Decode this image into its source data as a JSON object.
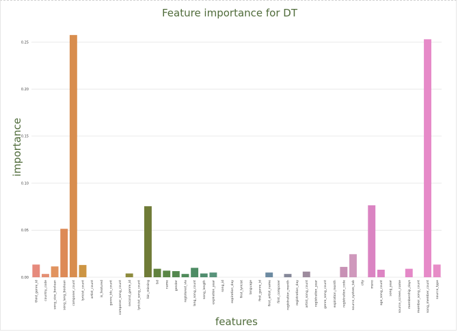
{
  "chart_data": {
    "type": "bar",
    "title": "Feature importance for DT",
    "xlabel": "features",
    "ylabel": "importance",
    "ylim": [
      0,
      0.27
    ],
    "yticks": [
      "0.00",
      "0.05",
      "0.10",
      "0.15",
      "0.20",
      "0.25"
    ],
    "grid": true,
    "categories": [
      "third_genre_id",
      "country_code",
      "song_size_boolean",
      "song_lang_boolean",
      "composer_count",
      "lyricist_count",
      "artist_count",
      "is_featured",
      "genre_ids_count",
      "composer_song_count",
      "second_genre_id",
      "lyricist_song_count",
      "bin_missing",
      "bd",
      "name",
      "gender",
      "registered_via",
      "lang_song_count",
      "song_length",
      "expiration_year",
      "song_id",
      "expiration_day",
      "first_lyricist",
      "language",
      "first_genre_id",
      "first_artist_name",
      "first_composer",
      "registration_month",
      "registration_day",
      "artist_song_count",
      "registration_year",
      "genre_song_count",
      "expiration_month",
      "registration_code",
      "source_system_tab",
      "city",
      "msno",
      "age_song_count",
      "song_year",
      "source_screen_name",
      "membership_days",
      "member_song_count",
      "song_member_count",
      "source_type"
    ],
    "values": [
      0.0135,
      0.0035,
      0.0115,
      0.0515,
      0.2575,
      0.013,
      0.0,
      0.0,
      0.0,
      0.0,
      0.004,
      0.0,
      0.0755,
      0.009,
      0.007,
      0.0065,
      0.0035,
      0.01,
      0.004,
      0.005,
      0.0,
      0.0,
      0.0,
      0.0,
      0.0,
      0.005,
      0.0,
      0.0035,
      0.0,
      0.006,
      0.0,
      0.0,
      0.0,
      0.011,
      0.0245,
      0.0,
      0.0765,
      0.008,
      0.0,
      0.0,
      0.009,
      0.0,
      0.253,
      0.0135
    ],
    "colors": [
      "#e68a7c",
      "#e48f73",
      "#e1935f",
      "#dd8a56",
      "#d88d4e",
      "#cd9543",
      "#c39b3d",
      "#b7a03a",
      "#a9a43a",
      "#9ca63d",
      "#8d8b3d",
      "#7d7a39",
      "#6f7b37",
      "#61823e",
      "#5a8645",
      "#54884f",
      "#4f8b5a",
      "#4d8c64",
      "#508d6e",
      "#58937a",
      "#5e9584",
      "#60958d",
      "#619496",
      "#62939f",
      "#6791a6",
      "#6c8aa1",
      "#77889b",
      "#858899",
      "#918a99",
      "#9d8b9d",
      "#a88aa2",
      "#b488a8",
      "#c089ac",
      "#c891b5",
      "#cf98bc",
      "#d58bbf",
      "#da84c2",
      "#dd84c3",
      "#e085c5",
      "#e286c6",
      "#e488c7",
      "#e589c8",
      "#e68ac8",
      "#e78cc7"
    ]
  }
}
